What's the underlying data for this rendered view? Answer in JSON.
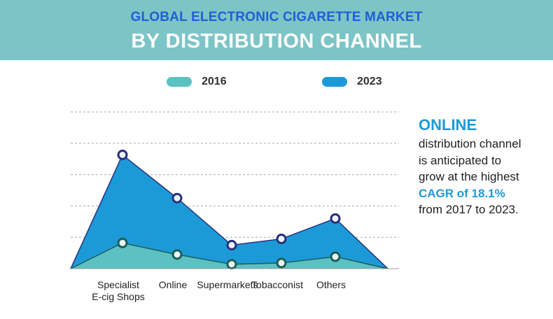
{
  "header": {
    "title_line1": "GLOBAL ELECTRONIC CIGARETTE MARKET",
    "title_line2": "BY DISTRIBUTION CHANNEL"
  },
  "legend": {
    "series_2016": "2016",
    "series_2023": "2023"
  },
  "colors": {
    "header_bg": "#7dc4c6",
    "title_blue": "#1f5fd6",
    "area_2016": "#5cc1c3",
    "area_2023": "#1c9ad8",
    "accent": "#1e9ad6"
  },
  "chart_data": {
    "type": "area",
    "categories": [
      "Specialist E-cig Shops",
      "Online",
      "Supermarkets",
      "Tobacconist",
      "Others"
    ],
    "category_labels": [
      [
        "Specialist",
        "E-cig Shops"
      ],
      [
        "Online"
      ],
      [
        "Supermarkets"
      ],
      [
        "Tobacconist"
      ],
      [
        "Others"
      ]
    ],
    "series": [
      {
        "name": "2016",
        "values": [
          8.2,
          4.5,
          1.4,
          1.8,
          3.8
        ]
      },
      {
        "name": "2023",
        "values": [
          36.3,
          22.5,
          7.5,
          9.5,
          16.0
        ]
      }
    ],
    "ylim": [
      0,
      50
    ],
    "grid": true,
    "legend_position": "top",
    "title": "",
    "xlabel": "",
    "ylabel": ""
  },
  "side_note": {
    "heading": "ONLINE",
    "line1": "distribution channel",
    "line2": "is anticipated to",
    "line3": "grow at the highest",
    "highlight": "CAGR of 18.1%",
    "line4": "from 2017 to 2023."
  }
}
